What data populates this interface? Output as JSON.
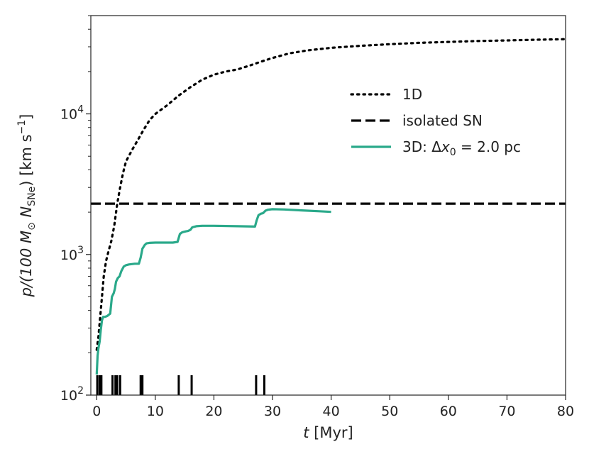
{
  "chart_data": {
    "type": "line",
    "xlabel_var": "t",
    "xlabel_unit": " [Myr]",
    "ylabel_main": "p/(100 M",
    "ylabel_sun": "⊙",
    "ylabel_n": " N",
    "ylabel_sub": "SNe",
    "ylabel_units": ") [km s",
    "ylabel_exp": "−1",
    "ylabel_close": "]",
    "xlim": [
      -1,
      80
    ],
    "ylim": [
      100,
      50000
    ],
    "yscale": "log",
    "x_ticks": [
      0,
      10,
      20,
      30,
      40,
      50,
      60,
      70,
      80
    ],
    "x_tick_labels": [
      "0",
      "10",
      "20",
      "30",
      "40",
      "50",
      "60",
      "70",
      "80"
    ],
    "y_ticks": [
      100,
      1000,
      10000
    ],
    "y_tick_base": "10",
    "y_tick_exps": [
      "2",
      "3",
      "4"
    ],
    "legend": {
      "position": "upper-right",
      "entries": [
        "1D",
        "isolated SN",
        "3D: Δx",
        "0",
        " =  2.0 pc"
      ]
    },
    "series": [
      {
        "name": "1D",
        "style": "dotted",
        "color": "#000000",
        "x": [
          0,
          0.3,
          0.6,
          0.9,
          1.2,
          1.6,
          2.0,
          2.5,
          3.0,
          3.5,
          4.0,
          4.5,
          5.0,
          6.0,
          7.0,
          8.0,
          9.0,
          10,
          12,
          14,
          16,
          18,
          20,
          22,
          24,
          26,
          28,
          30,
          33,
          36,
          40,
          45,
          50,
          55,
          60,
          65,
          70,
          75,
          80
        ],
        "y": [
          210,
          260,
          360,
          500,
          700,
          900,
          1050,
          1250,
          1600,
          2300,
          3000,
          3800,
          4600,
          5500,
          6500,
          7700,
          9000,
          10000,
          11500,
          13500,
          15500,
          17500,
          19000,
          20000,
          20700,
          22000,
          23500,
          25000,
          27000,
          28300,
          29500,
          30500,
          31300,
          32000,
          32500,
          33000,
          33300,
          33700,
          34000
        ]
      },
      {
        "name": "isolated SN",
        "style": "dashed",
        "color": "#000000",
        "x": [
          -1,
          80
        ],
        "y": [
          2300,
          2300
        ]
      },
      {
        "name": "3D: Δx0 = 2.0 pc",
        "style": "solid",
        "color": "#2aa98a",
        "x": [
          0,
          0.15,
          0.3,
          0.5,
          0.7,
          0.9,
          1.1,
          1.4,
          1.8,
          2.3,
          2.6,
          2.9,
          3.1,
          3.3,
          3.6,
          3.9,
          4.2,
          4.6,
          5.0,
          5.5,
          6.0,
          6.5,
          7.2,
          7.5,
          7.8,
          8.2,
          8.5,
          9.0,
          10,
          11,
          12,
          13,
          13.8,
          14.2,
          14.6,
          15.2,
          15.6,
          16.0,
          16.3,
          17,
          18,
          20,
          24,
          27.0,
          27.3,
          27.6,
          28.0,
          28.4,
          28.8,
          29.2,
          30,
          32,
          35,
          38,
          40
        ],
        "y": [
          140,
          190,
          215,
          240,
          290,
          340,
          360,
          360,
          365,
          380,
          500,
          530,
          570,
          640,
          680,
          700,
          760,
          820,
          840,
          850,
          855,
          860,
          860,
          950,
          1100,
          1170,
          1200,
          1210,
          1215,
          1215,
          1215,
          1215,
          1230,
          1400,
          1440,
          1460,
          1470,
          1500,
          1560,
          1590,
          1600,
          1600,
          1590,
          1580,
          1750,
          1900,
          1950,
          1970,
          2050,
          2080,
          2100,
          2090,
          2060,
          2030,
          2010
        ]
      }
    ],
    "sn_event_times": [
      0.1,
      0.5,
      0.8,
      2.7,
      3.2,
      3.5,
      4.0,
      7.5,
      7.8,
      14.0,
      16.2,
      27.2,
      28.6
    ],
    "sn_marker_color": "#000000"
  }
}
